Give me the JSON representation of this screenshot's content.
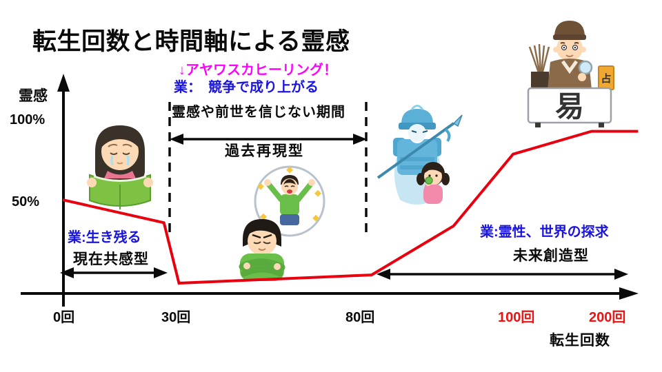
{
  "title": "転生回数と時間軸による霊感",
  "colors": {
    "line_red": "#e8000f",
    "tick_red": "#ee1111",
    "annotation_blue": "#1a14e0",
    "annotation_magenta": "#ff00ff",
    "text_black": "#0a0a0a"
  },
  "y_axis": {
    "label": "霊感",
    "tick_100": "100%",
    "tick_50": "50%"
  },
  "x_axis": {
    "label": "転生回数",
    "tick_0": "0回",
    "tick_30": "30回",
    "tick_80": "80回",
    "tick_100": "100回",
    "tick_200": "200回"
  },
  "annotations": {
    "ayahuasca": "↓アヤワスカヒーリング！",
    "karma_competition": "業：　競争で成り上がる",
    "disbelief_period": "霊感や前世を信じない期間",
    "past_type": "過去再現型",
    "karma_survival": "業:生き残る",
    "present_type": "現在共感型",
    "karma_spirituality": "業:霊性、世界の探求",
    "future_type": "未来創造型"
  },
  "illustrations": {
    "fortune_table_char": "易",
    "fortune_sign_char": "占"
  },
  "chart_data": {
    "type": "line",
    "title": "転生回数と時間軸による霊感",
    "xlabel": "転生回数",
    "ylabel": "霊感",
    "x_tick_values": [
      0,
      30,
      80,
      100,
      200
    ],
    "x_tick_labels": [
      "0回",
      "30回",
      "80回",
      "100回",
      "200回"
    ],
    "y_tick_labels": [
      "100%",
      "50%"
    ],
    "ylim": [
      0,
      100
    ],
    "x_axis_nonlinear": true,
    "grid": false,
    "legend": false,
    "series": [
      {
        "name": "霊感",
        "color": "#e8000f",
        "points": [
          {
            "x": 0,
            "y": 51
          },
          {
            "x": 27,
            "y": 37
          },
          {
            "x": 31,
            "y": 0
          },
          {
            "x": 81,
            "y": 5
          },
          {
            "x": 92,
            "y": 35
          },
          {
            "x": 100,
            "y": 79
          },
          {
            "x": 179,
            "y": 93
          },
          {
            "x": 226,
            "y": 93
          }
        ]
      }
    ]
  }
}
